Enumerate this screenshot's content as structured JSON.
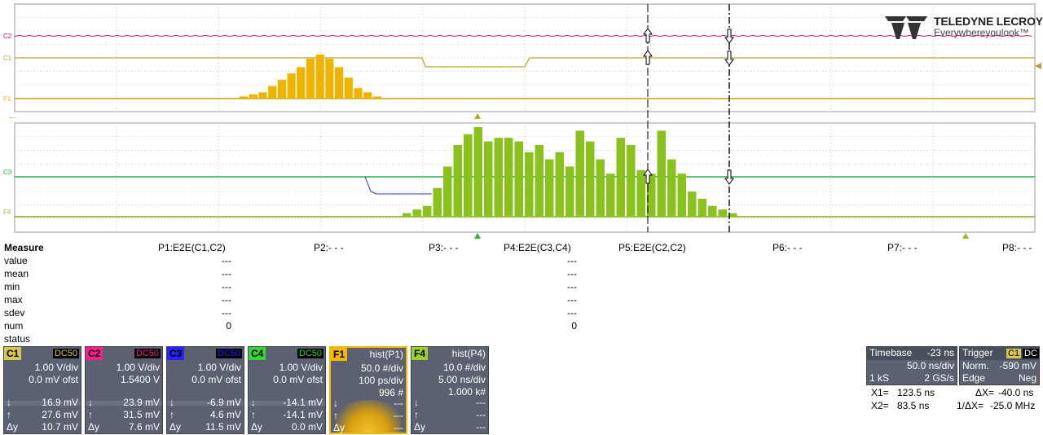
{
  "logo": {
    "brand": "TELEDYNE LECROY",
    "tagline": "Everywhereyoulook™"
  },
  "grid_traces": {
    "upper": {
      "labels": [
        "C2",
        "C1",
        "F1"
      ],
      "colors": [
        "#c2147a",
        "#b3a52d",
        "#f0b400"
      ]
    },
    "lower": {
      "labels": [
        "C3",
        "F4"
      ],
      "colors": [
        "#24b24b",
        "#8ac21d"
      ]
    }
  },
  "histogram_upper": {
    "values": [
      1,
      2,
      3,
      6,
      9,
      12,
      15,
      19,
      21,
      19,
      15,
      10,
      5,
      3,
      1
    ]
  },
  "histogram_lower": {
    "values": [
      1,
      2,
      3,
      8,
      14,
      20,
      23,
      25,
      21,
      22,
      22,
      21,
      18,
      20,
      16,
      18,
      14,
      24,
      21,
      16,
      12,
      22,
      20,
      13,
      12,
      24,
      16,
      12,
      7,
      5,
      3,
      2,
      1
    ]
  },
  "measure": {
    "title": "Measure",
    "rows": [
      "value",
      "mean",
      "min",
      "max",
      "sdev",
      "num",
      "status"
    ],
    "params": [
      "P1:E2E(C1,C2)",
      "P2:- - -",
      "P3:- - -",
      "P4:E2E(C3,C4)",
      "P5:E2E(C2,C2)",
      "P6:- - -",
      "P7:- - -",
      "P8:- - -"
    ],
    "p1": [
      "---",
      "---",
      "---",
      "---",
      "---",
      "0"
    ],
    "p4": [
      "---",
      "---",
      "---",
      "---",
      "---",
      "0"
    ]
  },
  "channels": [
    {
      "tag": "C1",
      "color": "#d6c84a",
      "coupling": "DC50",
      "vdiv": "1.00 V/div",
      "ofst": "0.0 mV ofst",
      "down": "16.9 mV",
      "up": "27.6 mV",
      "dy": "10.7 mV"
    },
    {
      "tag": "C2",
      "color": "#ff1e8c",
      "coupling": "DC50",
      "vdiv": "1.00 V/div",
      "ofst": "1.5400 V",
      "down": "23.9 mV",
      "up": "31.5 mV",
      "dy": "7.6 mV"
    },
    {
      "tag": "C3",
      "color": "#2424ff",
      "coupling": "DC50",
      "vdiv": "1.00 V/div",
      "ofst": "0.0 mV ofst",
      "down": "-6.9 mV",
      "up": "4.6 mV",
      "dy": "11.5 mV"
    },
    {
      "tag": "C4",
      "color": "#33d633",
      "coupling": "DC50",
      "vdiv": "1.00 V/div",
      "ofst": "0.0 mV ofst",
      "down": "-14.1 mV",
      "up": "-14.1 mV",
      "dy": "0.0 mV"
    },
    {
      "tag": "F1",
      "color": "#f5b800",
      "coupling": "hist(P1)",
      "vdiv": "50.0 #/div",
      "ofst": "100 ps/div",
      "extra": "996 #",
      "down": "---",
      "up": "---",
      "dy": "---"
    },
    {
      "tag": "F4",
      "color": "#9bd22a",
      "coupling": "hist(P4)",
      "vdiv": "10.0 #/div",
      "ofst": "5.00 ns/div",
      "extra": "1.000 k#",
      "down": "---",
      "up": "---",
      "dy": "---"
    }
  ],
  "symbols": {
    "down": "↓",
    "up": "↑",
    "dy": "Δy"
  },
  "timebase": {
    "label": "Timebase",
    "delay": "-23 ns",
    "tdiv": "50.0 ns/div",
    "samples": "1 kS",
    "rate": "2 GS/s"
  },
  "trigger": {
    "label": "Trigger",
    "src": "C1",
    "cpl": "DC",
    "mode": "Norm.",
    "level": "-590 mV",
    "type": "Edge",
    "slope": "Neg"
  },
  "cursors": {
    "x1": "X1=",
    "x1v": "123.5 ns",
    "dx": "ΔX=",
    "dxv": "-40.0 ns",
    "x2": "X2=",
    "x2v": "83.5 ns",
    "idx": "1/ΔX=",
    "idxv": "-25.0 MHz"
  }
}
